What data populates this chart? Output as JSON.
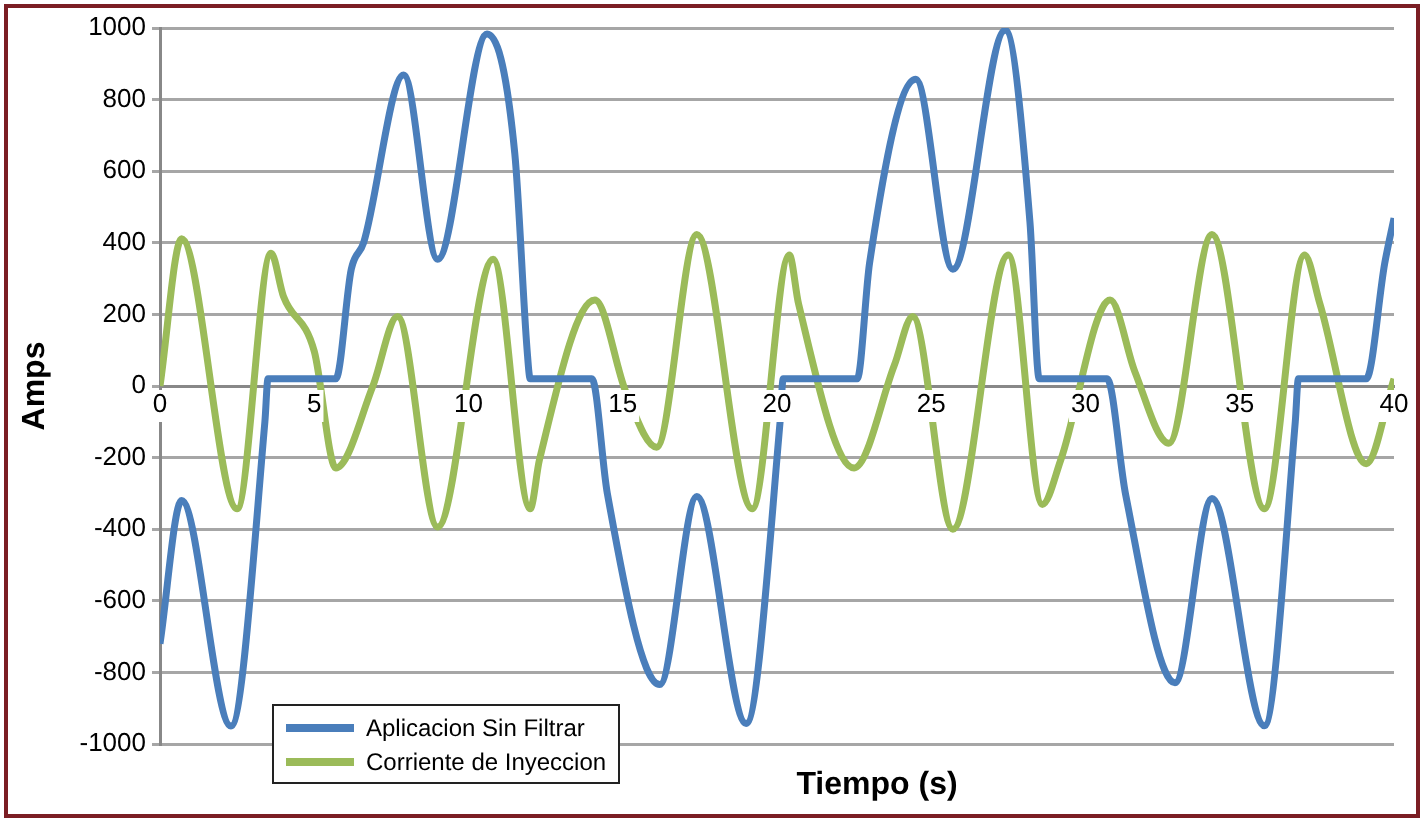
{
  "chart_data": {
    "type": "line",
    "xlabel": "Tiempo (s)",
    "ylabel": "Amps",
    "xlim": [
      0,
      40
    ],
    "xticks": [
      0,
      5,
      10,
      15,
      20,
      25,
      30,
      35,
      40
    ],
    "ylim": [
      -1000,
      1000
    ],
    "yticks": [
      -1000,
      -800,
      -600,
      -400,
      -200,
      0,
      200,
      400,
      600,
      800,
      1000
    ],
    "grid": "y",
    "legend": "bottom left",
    "series": [
      {
        "name": "Aplicacion Sin Filtrar",
        "color": "#4a7ebb",
        "x": [
          0,
          0.7,
          2.3,
          3.4,
          3.5,
          5.7,
          6.2,
          6.6,
          7.9,
          9.0,
          10.6,
          11.5,
          11.9,
          12.0,
          14.0,
          14.5,
          16.2,
          17.4,
          19.0,
          20.1,
          20.2,
          22.6,
          23.0,
          24.5,
          25.7,
          27.4,
          28.2,
          28.5,
          30.7,
          31.3,
          32.9,
          34.1,
          35.8,
          36.8,
          36.9,
          39.1,
          39.7,
          40
        ],
        "values": [
          -720,
          -320,
          -950,
          -100,
          20,
          20,
          326,
          400,
          869,
          354,
          983,
          650,
          100,
          20,
          20,
          -300,
          -834,
          -309,
          -943,
          -100,
          20,
          20,
          343,
          857,
          326,
          994,
          457,
          20,
          20,
          -303,
          -829,
          -314,
          -949,
          -100,
          20,
          20,
          343,
          469
        ]
      },
      {
        "name": "Corriente de Inyeccion",
        "color": "#9bbb59",
        "x": [
          0,
          0.7,
          2.5,
          3.6,
          4.0,
          5.0,
          5.7,
          6.9,
          7.7,
          9.0,
          10.8,
          12.0,
          12.3,
          14.1,
          15.1,
          16.1,
          17.4,
          19.2,
          20.4,
          20.7,
          22.5,
          23.8,
          24.4,
          25.7,
          27.5,
          28.6,
          29.2,
          30.8,
          31.6,
          32.7,
          34.1,
          35.8,
          37.1,
          37.6,
          39.1,
          40
        ],
        "values": [
          0,
          411,
          -343,
          371,
          251,
          97,
          -229,
          0,
          194,
          -394,
          354,
          -343,
          -206,
          240,
          -17,
          -171,
          423,
          -343,
          366,
          229,
          -229,
          57,
          194,
          -400,
          366,
          -331,
          -206,
          240,
          40,
          -160,
          423,
          -343,
          366,
          229,
          -217,
          20
        ]
      }
    ]
  }
}
